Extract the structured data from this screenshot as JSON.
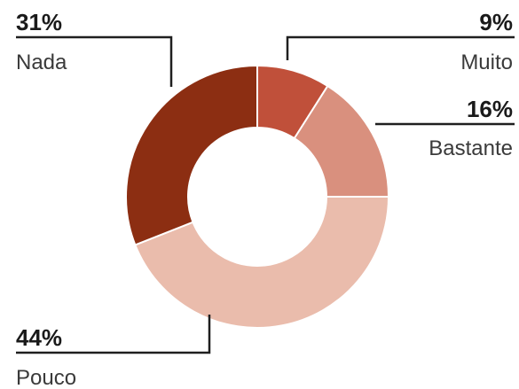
{
  "chart_data": {
    "type": "pie",
    "variant": "donut",
    "title": "",
    "slices": [
      {
        "label": "Muito",
        "value": 9,
        "display": "9%",
        "color": "#c0503a"
      },
      {
        "label": "Bastante",
        "value": 16,
        "display": "16%",
        "color": "#d9907e"
      },
      {
        "label": "Pouco",
        "value": 44,
        "display": "44%",
        "color": "#eabcac"
      },
      {
        "label": "Nada",
        "value": 31,
        "display": "31%",
        "color": "#8c2e12"
      }
    ],
    "start": "12 o'clock",
    "direction": "clockwise",
    "legend": "none (callout labels)"
  }
}
